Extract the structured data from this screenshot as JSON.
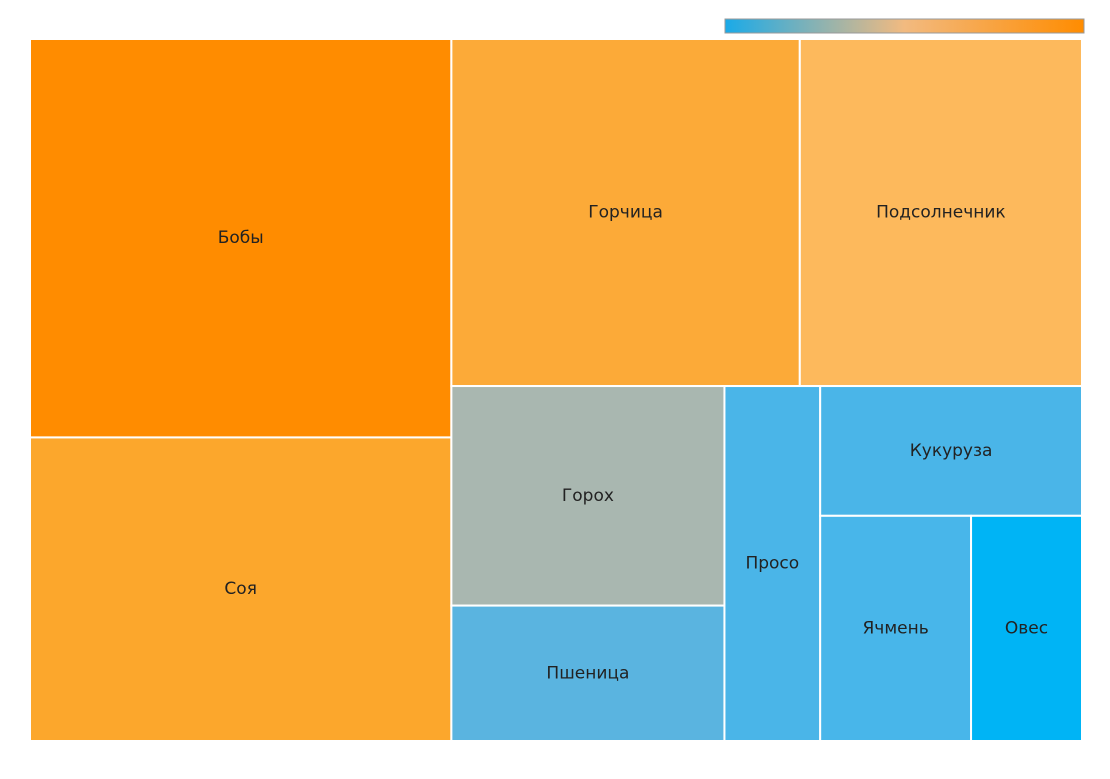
{
  "chart_data": {
    "type": "treemap",
    "categories": [
      "Бобы",
      "Соя",
      "Горчица",
      "Подсолнечник",
      "Горох",
      "Пшеница",
      "Просо",
      "Кукуруза",
      "Ячмень",
      "Овес"
    ],
    "values": [
      168,
      128,
      121,
      98,
      60,
      37,
      34,
      34,
      34,
      25
    ],
    "colors": [
      "#ff8c00",
      "#fca72c",
      "#fcaa38",
      "#fdb95c",
      "#a9b7b0",
      "#5ab4e0",
      "#4ab5e8",
      "#4ab5e8",
      "#48b6ea",
      "#00b4f5"
    ],
    "colorscale": [
      "#1aaae8",
      "#f2ba80",
      "#ff8c00"
    ]
  }
}
